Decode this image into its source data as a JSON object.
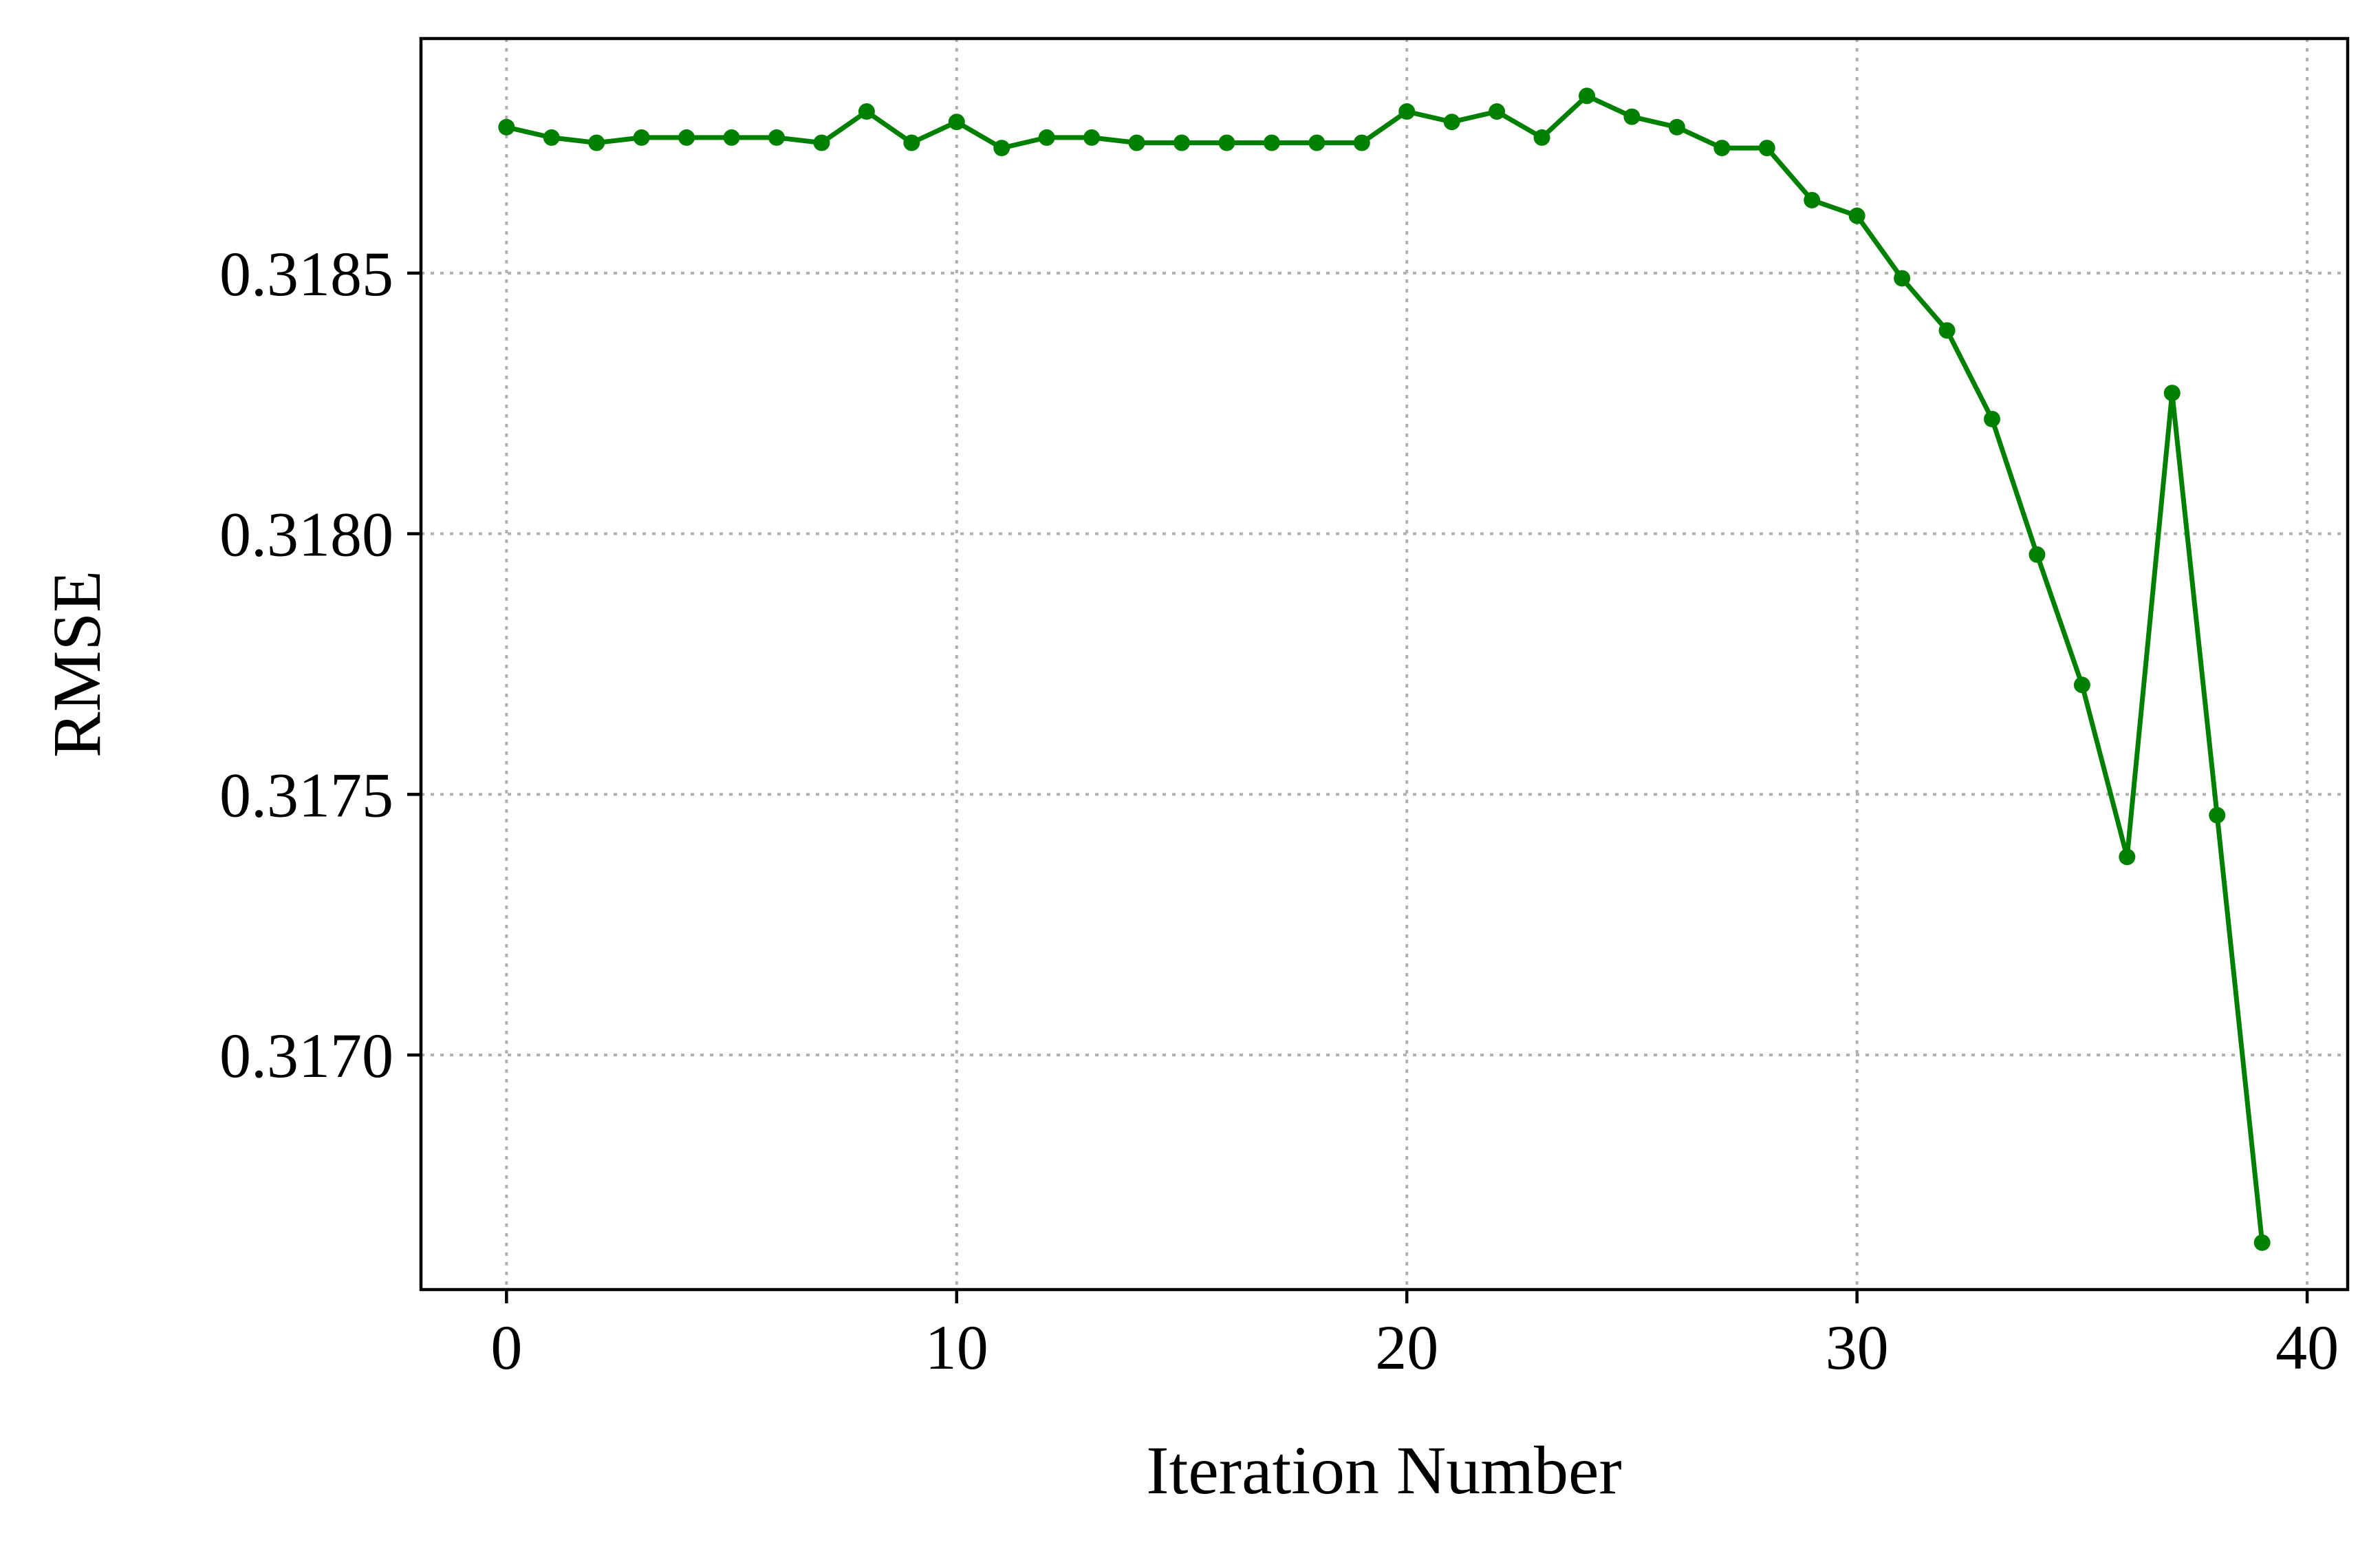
{
  "chart_data": {
    "type": "line",
    "xlabel": "Iteration Number",
    "ylabel": "RMSE",
    "xlim": [
      -1.9,
      40.9
    ],
    "ylim": [
      0.31655,
      0.31895
    ],
    "xticks": [
      0,
      10,
      20,
      30,
      40
    ],
    "xtick_labels": [
      "0",
      "10",
      "20",
      "30",
      "40"
    ],
    "yticks": [
      0.317,
      0.3175,
      0.318,
      0.3185
    ],
    "ytick_labels": [
      "0.3170",
      "0.3175",
      "0.3180",
      "0.3185"
    ],
    "grid": true,
    "series": [
      {
        "color": "#008000",
        "marker": "circle",
        "x": [
          0,
          1,
          2,
          3,
          4,
          5,
          6,
          7,
          8,
          9,
          10,
          11,
          12,
          13,
          14,
          15,
          16,
          17,
          18,
          19,
          20,
          21,
          22,
          23,
          24,
          25,
          26,
          27,
          28,
          29,
          30,
          31,
          32,
          33,
          34,
          35,
          36,
          37,
          38,
          39
        ],
        "y": [
          0.31878,
          0.31876,
          0.31875,
          0.31876,
          0.31876,
          0.31876,
          0.31876,
          0.31875,
          0.31881,
          0.31875,
          0.31879,
          0.31874,
          0.31876,
          0.31876,
          0.31875,
          0.31875,
          0.31875,
          0.31875,
          0.31875,
          0.31875,
          0.31881,
          0.31879,
          0.31881,
          0.31876,
          0.31884,
          0.3188,
          0.31878,
          0.31874,
          0.31874,
          0.31864,
          0.31861,
          0.31849,
          0.31839,
          0.31822,
          0.31796,
          0.31771,
          0.31738,
          0.31827,
          0.31746,
          0.31664
        ]
      }
    ]
  }
}
